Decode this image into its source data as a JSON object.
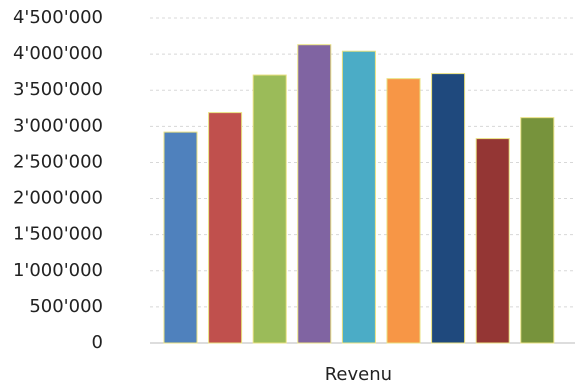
{
  "chart_data": {
    "type": "bar",
    "categories": [
      "Revenu"
    ],
    "series": [
      {
        "color": "#4f81bd",
        "values": [
          2920000
        ]
      },
      {
        "color": "#c0504d",
        "values": [
          3190000
        ]
      },
      {
        "color": "#9bbb59",
        "values": [
          3710000
        ]
      },
      {
        "color": "#8064a2",
        "values": [
          4130000
        ]
      },
      {
        "color": "#4bacc6",
        "values": [
          4040000
        ]
      },
      {
        "color": "#f79646",
        "values": [
          3660000
        ]
      },
      {
        "color": "#1f497d",
        "values": [
          3730000
        ]
      },
      {
        "color": "#943634",
        "values": [
          2830000
        ]
      },
      {
        "color": "#77933c",
        "values": [
          3120000
        ]
      }
    ],
    "ylim": [
      0,
      4500000
    ],
    "yticks": [
      0,
      {
        "value": 500000,
        "label": "500'000"
      },
      {
        "value": 1000000,
        "label": "1'000'000"
      },
      {
        "value": 1500000,
        "label": "1'500'000"
      },
      {
        "value": 2000000,
        "label": "2'000'000"
      },
      {
        "value": 2500000,
        "label": "2'500'000"
      },
      {
        "value": 3000000,
        "label": "3'000'000"
      },
      {
        "value": 3500000,
        "label": "3'500'000"
      },
      {
        "value": 4000000,
        "label": "4'000'000"
      },
      {
        "value": 4500000,
        "label": "4'500'000"
      }
    ],
    "grid": true
  }
}
